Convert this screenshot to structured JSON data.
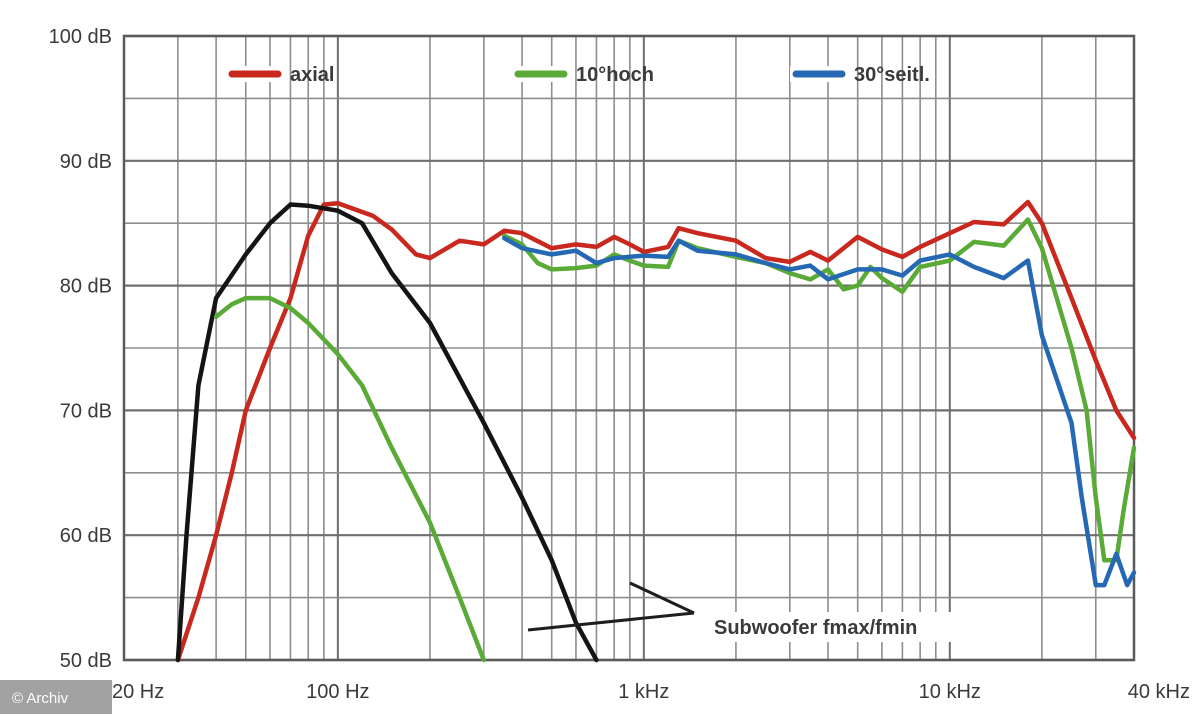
{
  "chart_data": {
    "type": "line",
    "x_scale": "log",
    "xlim": [
      20,
      40000
    ],
    "ylim": [
      50,
      100
    ],
    "grid": true,
    "legend_placement": "top",
    "x_ticks": [
      {
        "value": 20,
        "label": "20 Hz"
      },
      {
        "value": 100,
        "label": "100 Hz"
      },
      {
        "value": 1000,
        "label": "1 kHz"
      },
      {
        "value": 10000,
        "label": "10 kHz"
      },
      {
        "value": 40000,
        "label": "40 kHz"
      }
    ],
    "y_ticks": [
      {
        "value": 100,
        "label": "100 dB"
      },
      {
        "value": 90,
        "label": "90 dB"
      },
      {
        "value": 80,
        "label": "80 dB"
      },
      {
        "value": 70,
        "label": "70 dB"
      },
      {
        "value": 60,
        "label": "60 dB"
      },
      {
        "value": 50,
        "label": "50 dB"
      }
    ],
    "legend": [
      {
        "series": "axial",
        "label": "axial",
        "color": "#c8281e"
      },
      {
        "series": "hoch",
        "label": "10°hoch",
        "color": "#5aaa37"
      },
      {
        "series": "seitl",
        "label": "30°seitl.",
        "color": "#2569b4"
      }
    ],
    "series": [
      {
        "name": "axial",
        "color": "#c8281e",
        "points": [
          [
            30,
            50
          ],
          [
            35,
            55
          ],
          [
            40,
            60
          ],
          [
            45,
            65
          ],
          [
            50,
            70
          ],
          [
            60,
            75
          ],
          [
            70,
            79
          ],
          [
            80,
            84
          ],
          [
            90,
            86.5
          ],
          [
            100,
            86.6
          ],
          [
            130,
            85.6
          ],
          [
            150,
            84.5
          ],
          [
            180,
            82.5
          ],
          [
            200,
            82.2
          ],
          [
            250,
            83.6
          ],
          [
            300,
            83.3
          ],
          [
            350,
            84.4
          ],
          [
            400,
            84.2
          ],
          [
            500,
            83
          ],
          [
            600,
            83.3
          ],
          [
            700,
            83.1
          ],
          [
            800,
            83.9
          ],
          [
            900,
            83.3
          ],
          [
            1000,
            82.7
          ],
          [
            1200,
            83.1
          ],
          [
            1300,
            84.6
          ],
          [
            1500,
            84.2
          ],
          [
            2000,
            83.6
          ],
          [
            2500,
            82.2
          ],
          [
            3000,
            81.9
          ],
          [
            3500,
            82.7
          ],
          [
            4000,
            82
          ],
          [
            5000,
            83.9
          ],
          [
            6000,
            82.9
          ],
          [
            7000,
            82.3
          ],
          [
            8000,
            83.1
          ],
          [
            10000,
            84.2
          ],
          [
            12000,
            85.1
          ],
          [
            15000,
            84.9
          ],
          [
            18000,
            86.7
          ],
          [
            20000,
            85
          ],
          [
            25000,
            79
          ],
          [
            30000,
            74
          ],
          [
            35000,
            70
          ],
          [
            40000,
            67.8
          ]
        ]
      },
      {
        "name": "hoch",
        "color": "#5aaa37",
        "points": [
          [
            350,
            84
          ],
          [
            400,
            83.3
          ],
          [
            450,
            81.8
          ],
          [
            500,
            81.3
          ],
          [
            600,
            81.4
          ],
          [
            700,
            81.6
          ],
          [
            800,
            82.5
          ],
          [
            900,
            82
          ],
          [
            1000,
            81.6
          ],
          [
            1200,
            81.5
          ],
          [
            1300,
            83.6
          ],
          [
            1500,
            83
          ],
          [
            2000,
            82.3
          ],
          [
            2500,
            81.8
          ],
          [
            3000,
            81
          ],
          [
            3500,
            80.5
          ],
          [
            4000,
            81.3
          ],
          [
            4500,
            79.7
          ],
          [
            5000,
            80
          ],
          [
            5500,
            81.5
          ],
          [
            6000,
            80.6
          ],
          [
            7000,
            79.5
          ],
          [
            8000,
            81.5
          ],
          [
            10000,
            82
          ],
          [
            12000,
            83.5
          ],
          [
            15000,
            83.2
          ],
          [
            18000,
            85.3
          ],
          [
            20000,
            83
          ],
          [
            25000,
            75
          ],
          [
            28000,
            70
          ],
          [
            30000,
            63
          ],
          [
            32000,
            58
          ],
          [
            35000,
            58
          ],
          [
            37000,
            62
          ],
          [
            40000,
            67
          ]
        ]
      },
      {
        "name": "seitl",
        "color": "#2569b4",
        "points": [
          [
            350,
            83.8
          ],
          [
            400,
            83
          ],
          [
            500,
            82.5
          ],
          [
            600,
            82.8
          ],
          [
            700,
            81.8
          ],
          [
            800,
            82.2
          ],
          [
            1000,
            82.4
          ],
          [
            1200,
            82.3
          ],
          [
            1300,
            83.6
          ],
          [
            1500,
            82.8
          ],
          [
            2000,
            82.5
          ],
          [
            2500,
            81.8
          ],
          [
            3000,
            81.3
          ],
          [
            3500,
            81.6
          ],
          [
            4000,
            80.5
          ],
          [
            5000,
            81.3
          ],
          [
            6000,
            81.3
          ],
          [
            7000,
            80.8
          ],
          [
            8000,
            82
          ],
          [
            10000,
            82.5
          ],
          [
            12000,
            81.5
          ],
          [
            15000,
            80.6
          ],
          [
            18000,
            82
          ],
          [
            20000,
            76
          ],
          [
            25000,
            69
          ],
          [
            27000,
            63
          ],
          [
            30000,
            56
          ],
          [
            32000,
            56
          ],
          [
            35000,
            58.5
          ],
          [
            38000,
            56
          ],
          [
            40000,
            57
          ]
        ]
      },
      {
        "name": "black",
        "color": "#141414",
        "points": [
          [
            30,
            50
          ],
          [
            32,
            60
          ],
          [
            35,
            72
          ],
          [
            40,
            79
          ],
          [
            50,
            82.5
          ],
          [
            60,
            85
          ],
          [
            70,
            86.5
          ],
          [
            80,
            86.4
          ],
          [
            100,
            86
          ],
          [
            120,
            85
          ],
          [
            150,
            81
          ],
          [
            200,
            77
          ],
          [
            300,
            69
          ],
          [
            400,
            63
          ],
          [
            500,
            58
          ],
          [
            600,
            53
          ],
          [
            700,
            50
          ]
        ]
      },
      {
        "name": "green-low",
        "color": "#5aaa37",
        "points": [
          [
            40,
            77.5
          ],
          [
            45,
            78.5
          ],
          [
            50,
            79
          ],
          [
            60,
            79
          ],
          [
            70,
            78.2
          ],
          [
            80,
            77
          ],
          [
            100,
            74.5
          ],
          [
            120,
            72
          ],
          [
            150,
            67
          ],
          [
            200,
            61
          ],
          [
            250,
            55
          ],
          [
            300,
            50
          ]
        ]
      }
    ],
    "annotation": {
      "text": "Subwoofer  fmax/fmin"
    },
    "credit": "© Archiv"
  }
}
